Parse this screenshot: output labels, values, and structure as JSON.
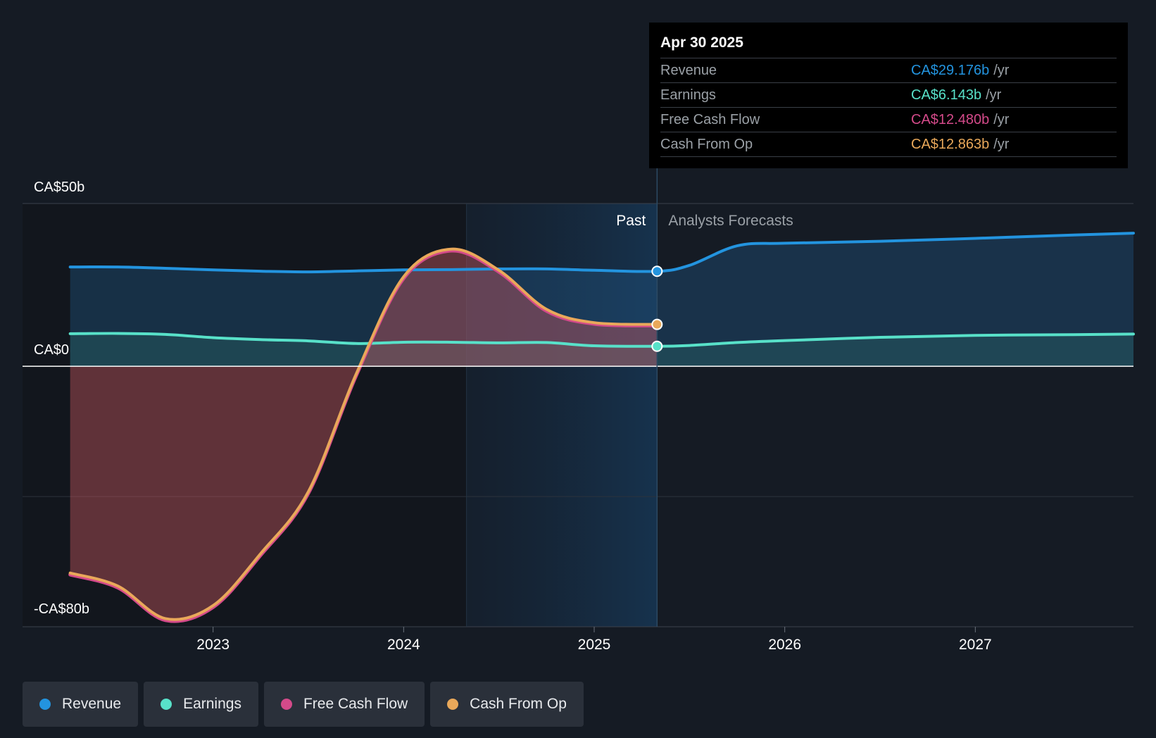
{
  "chart_data": {
    "type": "area",
    "y_unit_labels": [
      "CA$50b",
      "CA$0",
      "-CA$80b"
    ],
    "ylim": [
      -80,
      50
    ],
    "x_ticks": [
      "2023",
      "2024",
      "2025",
      "2026",
      "2027"
    ],
    "x_tick_values": [
      2023.0,
      2024.0,
      2025.0,
      2026.0,
      2027.0
    ],
    "xlim": [
      2022.0,
      2027.83
    ],
    "past_label": "Past",
    "forecast_label": "Analysts Forecasts",
    "divider_x": 2025.33,
    "highlight_start_x": 2024.33,
    "series": [
      {
        "name": "Revenue",
        "color": "#2394df",
        "x": [
          2022.25,
          2022.5,
          2022.75,
          2023.0,
          2023.25,
          2023.5,
          2023.75,
          2024.0,
          2024.25,
          2024.5,
          2024.75,
          2025.0,
          2025.33,
          2025.5,
          2025.75,
          2026.0,
          2026.5,
          2027.0,
          2027.5,
          2027.83
        ],
        "values": [
          30.5,
          30.5,
          30.1,
          29.6,
          29.2,
          29.0,
          29.3,
          29.6,
          29.7,
          29.9,
          29.9,
          29.5,
          29.176,
          31.0,
          37.0,
          37.8,
          38.4,
          39.3,
          40.3,
          40.9
        ]
      },
      {
        "name": "Earnings",
        "color": "#58e1c9",
        "x": [
          2022.25,
          2022.5,
          2022.75,
          2023.0,
          2023.25,
          2023.5,
          2023.75,
          2024.0,
          2024.25,
          2024.5,
          2024.75,
          2025.0,
          2025.33,
          2025.5,
          2025.75,
          2026.0,
          2026.5,
          2027.0,
          2027.5,
          2027.83
        ],
        "values": [
          10.0,
          10.1,
          9.8,
          8.8,
          8.2,
          7.8,
          7.0,
          7.4,
          7.4,
          7.2,
          7.3,
          6.3,
          6.143,
          6.4,
          7.3,
          7.9,
          8.9,
          9.5,
          9.7,
          9.9
        ]
      },
      {
        "name": "Free Cash Flow",
        "color": "#d44a8a",
        "x": [
          2022.25,
          2022.5,
          2022.75,
          2023.0,
          2023.25,
          2023.5,
          2023.75,
          2024.0,
          2024.25,
          2024.5,
          2024.75,
          2025.0,
          2025.33
        ],
        "values": [
          -64.0,
          -68.0,
          -78.0,
          -74.0,
          -58.0,
          -39.0,
          -3.0,
          27.0,
          35.5,
          29.0,
          17.0,
          13.0,
          12.48
        ]
      },
      {
        "name": "Cash From Op",
        "color": "#e9a85a",
        "x": [
          2022.25,
          2022.5,
          2022.75,
          2023.0,
          2023.25,
          2023.5,
          2023.75,
          2024.0,
          2024.25,
          2024.5,
          2024.75,
          2025.0,
          2025.33
        ],
        "values": [
          -63.5,
          -67.5,
          -77.5,
          -73.5,
          -57.5,
          -38.5,
          -2.5,
          27.5,
          36.0,
          29.5,
          17.5,
          13.4,
          12.863
        ]
      }
    ]
  },
  "tooltip": {
    "date": "Apr 30 2025",
    "rows": [
      {
        "label": "Revenue",
        "value": "CA$29.176b",
        "unit": "/yr",
        "color": "#2394df"
      },
      {
        "label": "Earnings",
        "value": "CA$6.143b",
        "unit": "/yr",
        "color": "#58e1c9"
      },
      {
        "label": "Free Cash Flow",
        "value": "CA$12.480b",
        "unit": "/yr",
        "color": "#d44a8a"
      },
      {
        "label": "Cash From Op",
        "value": "CA$12.863b",
        "unit": "/yr",
        "color": "#e9a85a"
      }
    ]
  },
  "legend": [
    {
      "label": "Revenue",
      "color": "#2394df"
    },
    {
      "label": "Earnings",
      "color": "#58e1c9"
    },
    {
      "label": "Free Cash Flow",
      "color": "#d44a8a"
    },
    {
      "label": "Cash From Op",
      "color": "#e9a85a"
    }
  ]
}
